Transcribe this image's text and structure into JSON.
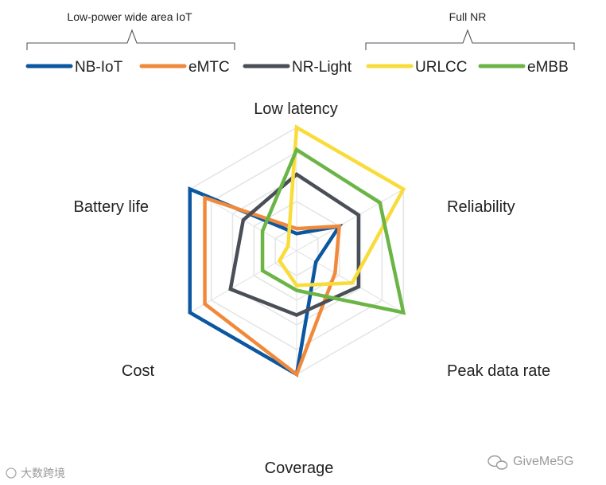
{
  "groups": {
    "low_power": "Low-power wide area IoT",
    "full_nr": "Full NR"
  },
  "watermarks": {
    "left": "大数跨境",
    "right": "GiveMe5G"
  },
  "chart_data": {
    "type": "radar",
    "title": "",
    "axes": [
      "Low latency",
      "Reliability",
      "Peak data rate",
      "Coverage",
      "Cost",
      "Battery life"
    ],
    "range": [
      0,
      5
    ],
    "grid": true,
    "legend_position": "top",
    "series": [
      {
        "name": "NB-IoT",
        "color": "#0b57a0",
        "values": [
          0.7,
          2.0,
          0.9,
          5.0,
          5.0,
          5.0
        ]
      },
      {
        "name": "eMTC",
        "color": "#f0893b",
        "values": [
          0.9,
          2.0,
          1.8,
          5.0,
          4.3,
          4.3
        ]
      },
      {
        "name": "NR-Light",
        "color": "#4a4e57",
        "values": [
          3.1,
          2.9,
          2.9,
          2.6,
          3.1,
          2.5
        ]
      },
      {
        "name": "URLCC",
        "color": "#f9dc3a",
        "values": [
          5.0,
          5.0,
          2.6,
          1.4,
          0.8,
          0.4
        ]
      },
      {
        "name": "eMBB",
        "color": "#6ab545",
        "values": [
          4.1,
          3.9,
          5.0,
          1.6,
          1.6,
          1.6
        ]
      }
    ]
  }
}
